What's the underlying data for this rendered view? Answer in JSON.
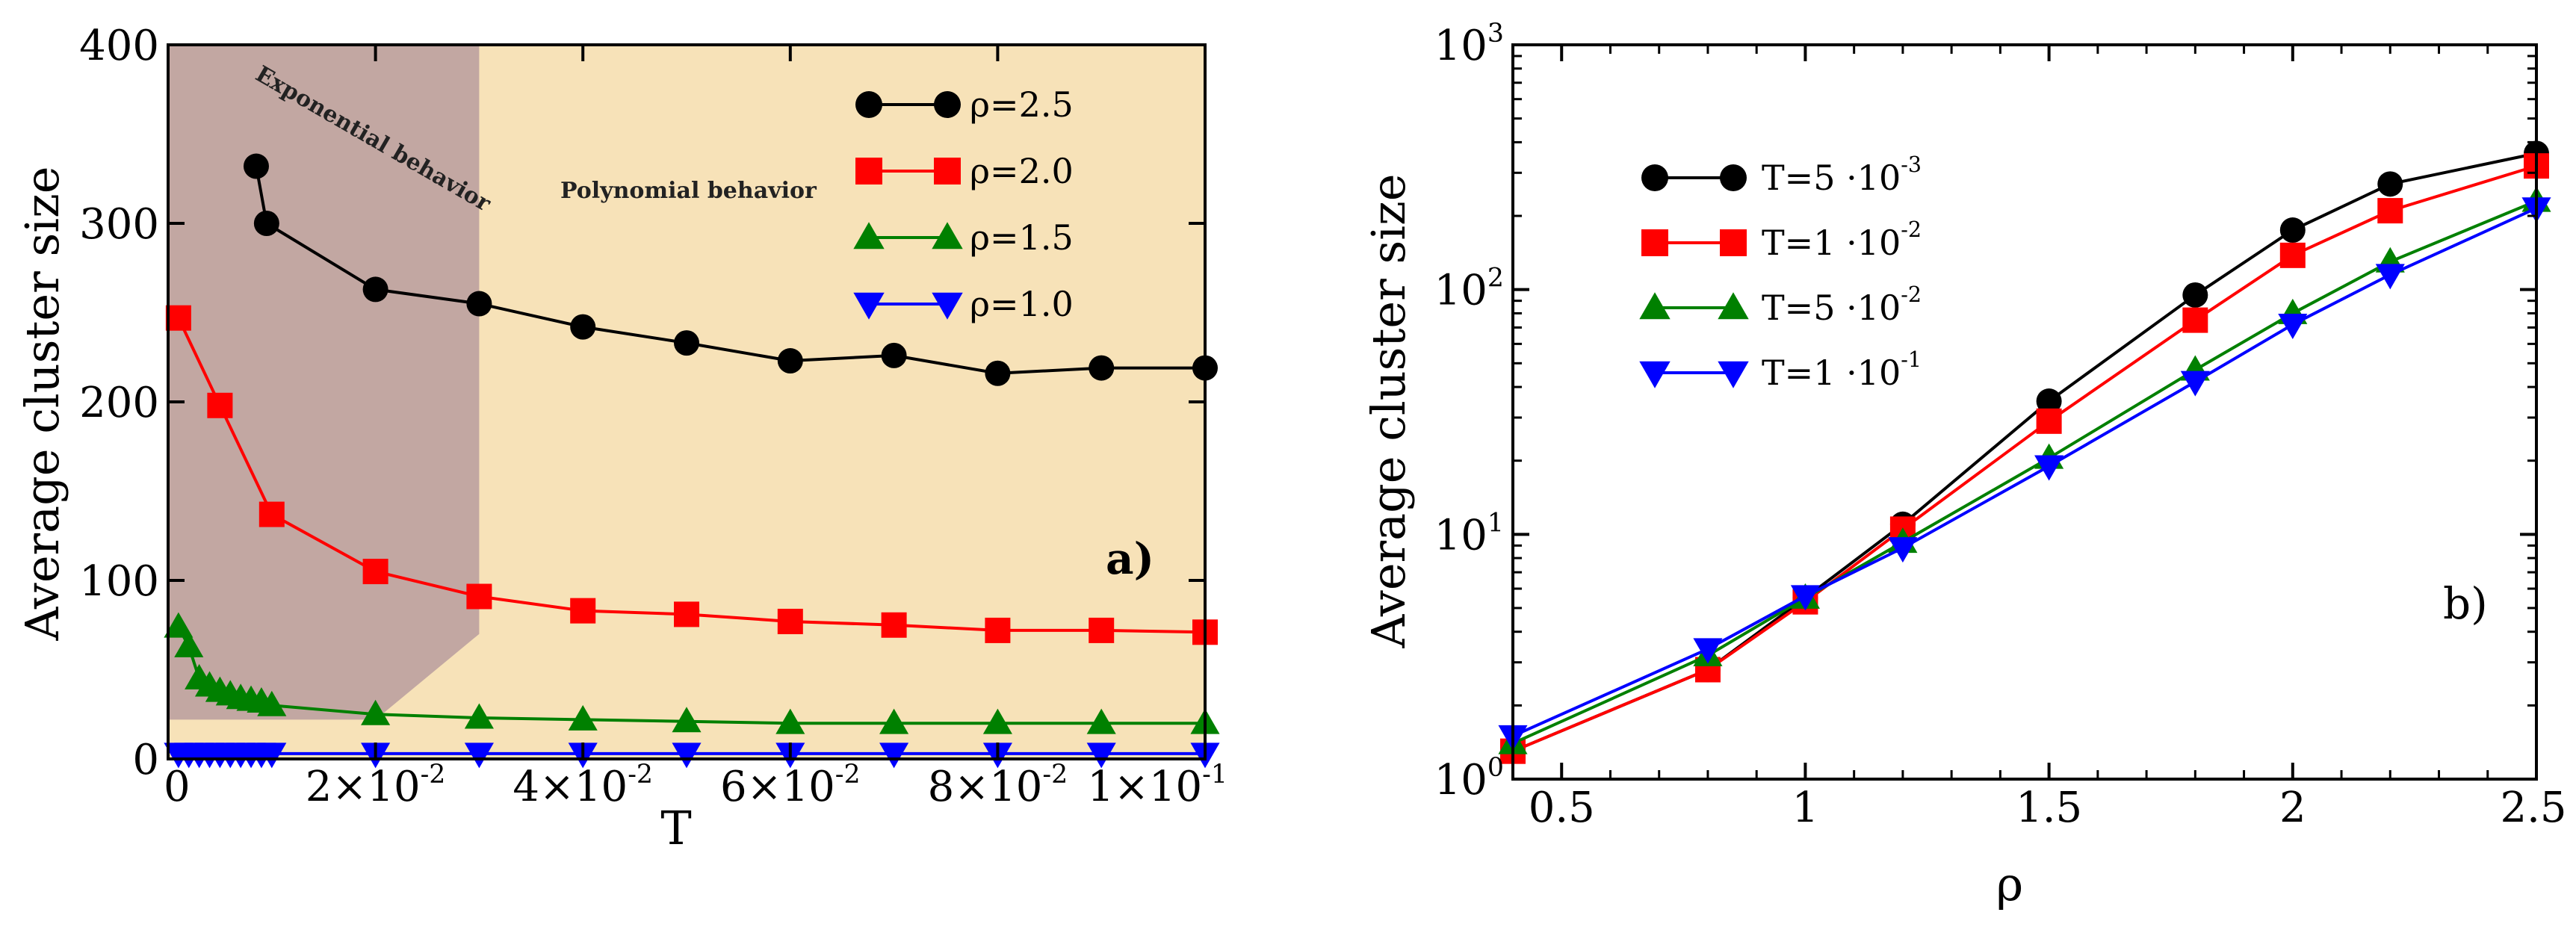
{
  "chart_data": [
    {
      "id": "a",
      "type": "line",
      "panel_label": "a)",
      "xlabel": "T",
      "ylabel": "Average cluster size",
      "xlim": [
        0,
        0.1
      ],
      "ylim": [
        0,
        400
      ],
      "yticks": [
        0,
        100,
        200,
        300,
        400
      ],
      "xticks": [
        {
          "v": 0,
          "mant": "0",
          "exp": ""
        },
        {
          "v": 0.02,
          "mant": "2×10",
          "exp": "-2"
        },
        {
          "v": 0.04,
          "mant": "4×10",
          "exp": "-2"
        },
        {
          "v": 0.06,
          "mant": "6×10",
          "exp": "-2"
        },
        {
          "v": 0.08,
          "mant": "8×10",
          "exp": "-2"
        },
        {
          "v": 0.1,
          "mant": "1×10",
          "exp": "-1"
        }
      ],
      "regions": [
        {
          "name": "exponential",
          "label": "Exponential behavior",
          "color": "#c2a7a2"
        },
        {
          "name": "polynomial",
          "label": "Polynomial behavior",
          "color": "#f7e2b8"
        }
      ],
      "series": [
        {
          "name": "ρ=2.5",
          "color": "#000000",
          "marker": "circle",
          "x": [
            0.0085,
            0.0095,
            0.02,
            0.03,
            0.04,
            0.05,
            0.06,
            0.07,
            0.08,
            0.09,
            0.1
          ],
          "y": [
            332,
            300,
            263,
            255,
            242,
            233,
            223,
            226,
            216,
            219,
            219
          ]
        },
        {
          "name": "ρ=2.0",
          "color": "#ff0000",
          "marker": "square",
          "x": [
            0.001,
            0.005,
            0.01,
            0.02,
            0.03,
            0.04,
            0.05,
            0.06,
            0.07,
            0.08,
            0.09,
            0.1
          ],
          "y": [
            247,
            198,
            137,
            105,
            91,
            83,
            81,
            77,
            75,
            72,
            72,
            71
          ]
        },
        {
          "name": "ρ=1.5",
          "color": "#008000",
          "marker": "triangle-up",
          "x": [
            0.001,
            0.002,
            0.003,
            0.004,
            0.005,
            0.006,
            0.007,
            0.008,
            0.009,
            0.01,
            0.02,
            0.03,
            0.04,
            0.05,
            0.06,
            0.07,
            0.08,
            0.09,
            0.1
          ],
          "y": [
            74,
            63,
            45,
            41,
            38,
            36,
            34,
            33,
            32,
            30,
            25,
            23,
            22,
            21,
            20,
            20,
            20,
            20,
            20
          ]
        },
        {
          "name": "ρ=1.0",
          "color": "#0000ff",
          "marker": "triangle-down",
          "x": [
            0.001,
            0.002,
            0.003,
            0.004,
            0.005,
            0.006,
            0.007,
            0.008,
            0.009,
            0.01,
            0.02,
            0.03,
            0.04,
            0.05,
            0.06,
            0.07,
            0.08,
            0.09,
            0.1
          ],
          "y": [
            3,
            3,
            3,
            3,
            3,
            3,
            3,
            3,
            3,
            3,
            3,
            3,
            3,
            3,
            3,
            3,
            3,
            3,
            3
          ]
        }
      ]
    },
    {
      "id": "b",
      "type": "line",
      "panel_label": "b)",
      "xlabel": "ρ",
      "ylabel": "Average cluster size",
      "yscale": "log",
      "xlim": [
        0.4,
        2.5
      ],
      "ylim": [
        1,
        1000
      ],
      "xticks": [
        "0.5",
        "1",
        "1.5",
        "2",
        "2.5"
      ],
      "xtick_values": [
        0.5,
        1,
        1.5,
        2,
        2.5
      ],
      "yticks": [
        {
          "v": 1,
          "mant": "10",
          "exp": "0"
        },
        {
          "v": 10,
          "mant": "10",
          "exp": "1"
        },
        {
          "v": 100,
          "mant": "10",
          "exp": "2"
        },
        {
          "v": 1000,
          "mant": "10",
          "exp": "3"
        }
      ],
      "series": [
        {
          "name": "T=5 ·10",
          "exp": "-3",
          "color": "#000000",
          "marker": "circle",
          "x": [
            0.4,
            0.8,
            1.0,
            1.2,
            1.5,
            1.8,
            2.0,
            2.2,
            2.5
          ],
          "y": [
            1.3,
            2.8,
            5.5,
            11,
            35,
            95,
            175,
            270,
            360
          ]
        },
        {
          "name": "T=1 ·10",
          "exp": "-2",
          "color": "#ff0000",
          "marker": "square",
          "x": [
            0.4,
            0.8,
            1.0,
            1.2,
            1.5,
            1.8,
            2.0,
            2.2,
            2.5
          ],
          "y": [
            1.3,
            2.8,
            5.3,
            10.5,
            29,
            75,
            138,
            210,
            320
          ]
        },
        {
          "name": "T=5 ·10",
          "exp": "-2",
          "color": "#008000",
          "marker": "triangle-up",
          "x": [
            0.4,
            0.8,
            1.0,
            1.2,
            1.5,
            1.8,
            2.0,
            2.2,
            2.5
          ],
          "y": [
            1.4,
            3.2,
            5.5,
            9.3,
            20.5,
            47,
            80,
            130,
            230
          ]
        },
        {
          "name": "T=1 ·10",
          "exp": "-1",
          "color": "#0000ff",
          "marker": "triangle-down",
          "x": [
            0.4,
            0.8,
            1.0,
            1.2,
            1.5,
            1.8,
            2.0,
            2.2,
            2.5
          ],
          "y": [
            1.5,
            3.4,
            5.6,
            8.8,
            19,
            42,
            72,
            115,
            215
          ]
        }
      ]
    }
  ]
}
